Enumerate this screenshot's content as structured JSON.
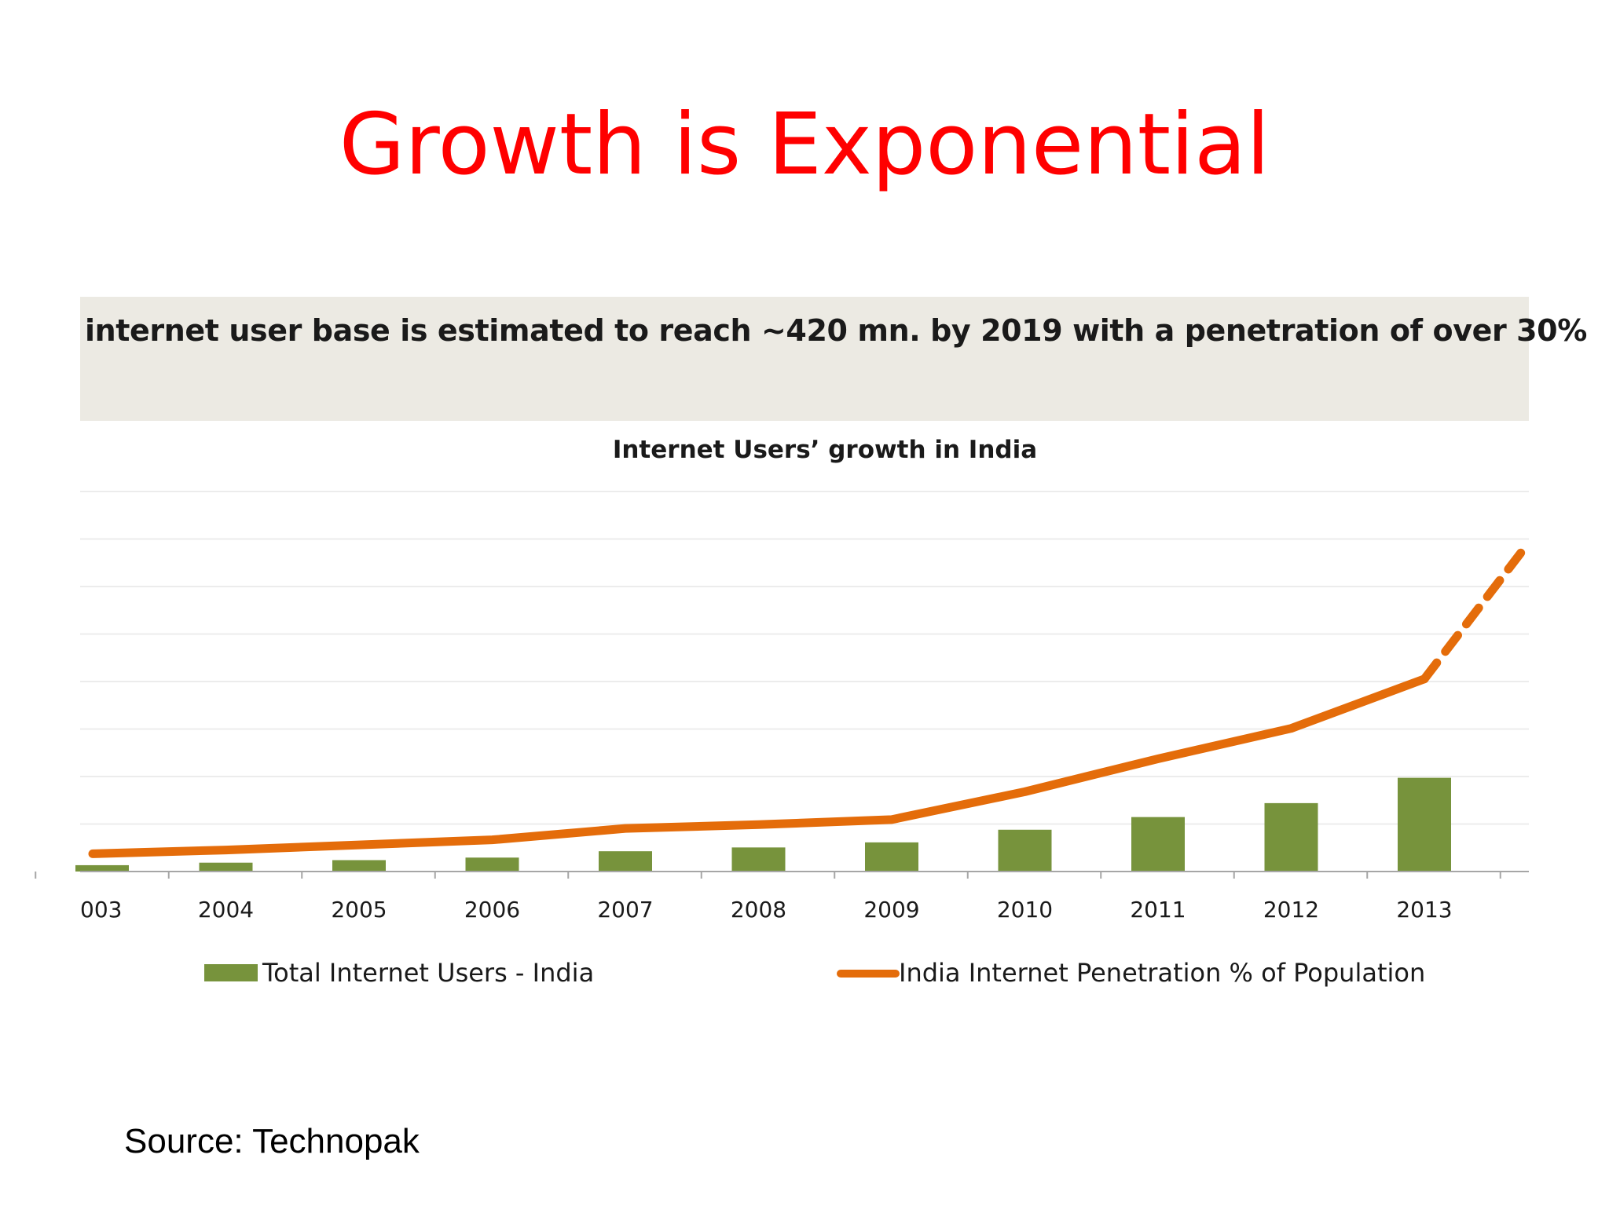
{
  "slide": {
    "title": "Growth is Exponential",
    "title_color": "#ff0000",
    "source": "Source: Technopak"
  },
  "chart_data": {
    "type": "bar",
    "banner": "internet user base is estimated to reach ~420 mn. by 2019 with a penetration of over 30%",
    "title": "Internet Users’ growth  in India",
    "categories": [
      "003",
      "2004",
      "2005",
      "2006",
      "2007",
      "2008",
      "2009",
      "2010",
      "2011",
      "2012",
      "2013"
    ],
    "series": [
      {
        "name": "Total Internet Users - India",
        "kind": "bar",
        "color": "#77933c",
        "values": [
          5,
          7,
          9,
          11,
          16,
          19,
          23,
          33,
          43,
          54,
          74
        ]
      },
      {
        "name": "India Internet Penetration % of Population",
        "kind": "line",
        "color": "#e46c0a",
        "values": [
          14,
          17,
          21,
          25,
          34,
          37,
          41,
          63,
          89,
          113,
          152
        ],
        "projection_end": 255
      }
    ],
    "ylim": [
      0,
      300
    ],
    "grid": true,
    "y_tick_labels": false,
    "legend_position": "bottom",
    "banner_bg": "#eceae3"
  }
}
